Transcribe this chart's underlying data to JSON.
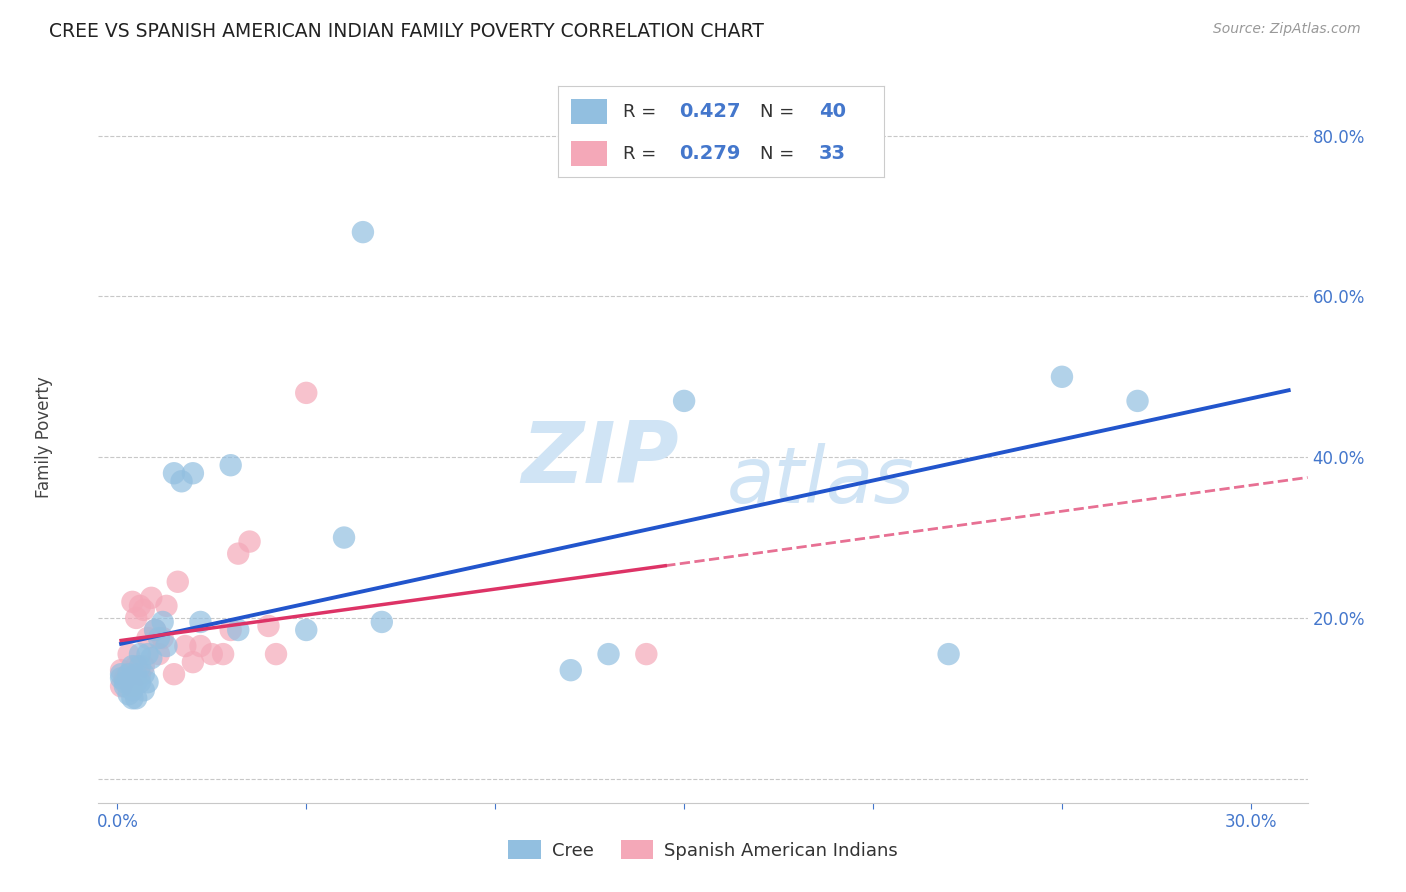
{
  "title": "CREE VS SPANISH AMERICAN INDIAN FAMILY POVERTY CORRELATION CHART",
  "source": "Source: ZipAtlas.com",
  "ylabel": "Family Poverty",
  "xlim": [
    -0.005,
    0.315
  ],
  "ylim": [
    -0.03,
    0.88
  ],
  "x_ticks": [
    0.0,
    0.05,
    0.1,
    0.15,
    0.2,
    0.25,
    0.3
  ],
  "x_tick_labels": [
    "0.0%",
    "",
    "",
    "",
    "",
    "",
    "30.0%"
  ],
  "y_ticks": [
    0.0,
    0.2,
    0.4,
    0.6,
    0.8
  ],
  "y_tick_labels_right": [
    "",
    "20.0%",
    "40.0%",
    "60.0%",
    "80.0%"
  ],
  "cree_color": "#92bfe0",
  "spanish_color": "#f4a8b8",
  "cree_line_color": "#2255cc",
  "spanish_line_color": "#dd3366",
  "grid_color": "#c8c8c8",
  "tick_color": "#4477cc",
  "cree_R": "0.427",
  "cree_N": "40",
  "spanish_R": "0.279",
  "spanish_N": "33",
  "cree_label": "Cree",
  "spanish_label": "Spanish American Indians",
  "cree_x": [
    0.001,
    0.001,
    0.002,
    0.002,
    0.003,
    0.003,
    0.004,
    0.004,
    0.004,
    0.005,
    0.005,
    0.005,
    0.006,
    0.006,
    0.006,
    0.007,
    0.007,
    0.008,
    0.008,
    0.009,
    0.01,
    0.011,
    0.012,
    0.013,
    0.015,
    0.017,
    0.02,
    0.022,
    0.03,
    0.032,
    0.05,
    0.06,
    0.065,
    0.07,
    0.12,
    0.13,
    0.15,
    0.22,
    0.25,
    0.27
  ],
  "cree_y": [
    0.13,
    0.125,
    0.12,
    0.115,
    0.13,
    0.105,
    0.14,
    0.11,
    0.1,
    0.13,
    0.12,
    0.1,
    0.155,
    0.14,
    0.12,
    0.13,
    0.11,
    0.12,
    0.155,
    0.15,
    0.185,
    0.175,
    0.195,
    0.165,
    0.38,
    0.37,
    0.38,
    0.195,
    0.39,
    0.185,
    0.185,
    0.3,
    0.68,
    0.195,
    0.135,
    0.155,
    0.47,
    0.155,
    0.5,
    0.47
  ],
  "spanish_x": [
    0.001,
    0.001,
    0.002,
    0.003,
    0.003,
    0.004,
    0.004,
    0.005,
    0.005,
    0.006,
    0.006,
    0.007,
    0.007,
    0.008,
    0.009,
    0.01,
    0.011,
    0.012,
    0.013,
    0.015,
    0.016,
    0.018,
    0.02,
    0.022,
    0.025,
    0.028,
    0.03,
    0.032,
    0.035,
    0.04,
    0.042,
    0.05,
    0.14
  ],
  "spanish_y": [
    0.135,
    0.115,
    0.125,
    0.155,
    0.13,
    0.115,
    0.22,
    0.14,
    0.2,
    0.13,
    0.215,
    0.21,
    0.14,
    0.175,
    0.225,
    0.185,
    0.155,
    0.175,
    0.215,
    0.13,
    0.245,
    0.165,
    0.145,
    0.165,
    0.155,
    0.155,
    0.185,
    0.28,
    0.295,
    0.19,
    0.155,
    0.48,
    0.155
  ],
  "spanish_line_xmax": 0.145,
  "spanish_line_xmax_dashed": 0.315
}
